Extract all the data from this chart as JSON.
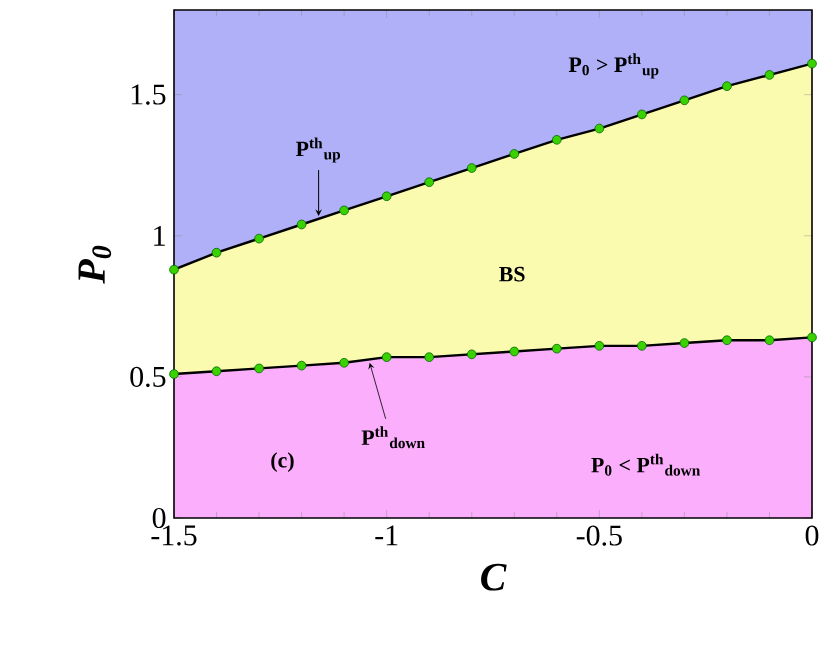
{
  "chart_data": {
    "type": "area",
    "xlabel": "C",
    "ylabel": "P$_{0}$",
    "x": [
      -1.5,
      -1.4,
      -1.3,
      -1.2,
      -1.1,
      -1.0,
      -0.9,
      -0.8,
      -0.7,
      -0.6,
      -0.5,
      -0.4,
      -0.3,
      -0.2,
      -0.1,
      0
    ],
    "series": [
      {
        "color": "#fbfbb0",
        "values": [
          0.88,
          0.94,
          0.99,
          1.04,
          1.09,
          1.14,
          1.19,
          1.24,
          1.29,
          1.34,
          1.38,
          1.43,
          1.48,
          1.53,
          1.57,
          1.61
        ]
      },
      {
        "color": "#fbaefb",
        "values": [
          0.51,
          0.52,
          0.53,
          0.54,
          0.55,
          0.57,
          0.57,
          0.58,
          0.59,
          0.6,
          0.61,
          0.61,
          0.62,
          0.63,
          0.63,
          0.64
        ]
      }
    ],
    "bands": [
      {
        "axis": "y",
        "from": 0.88,
        "to": 1.8,
        "color": "#b0b0f8"
      }
    ],
    "marker": "circle",
    "line_style": "solid",
    "grid": false,
    "xlim": [
      -1.5,
      0
    ],
    "ylim": [
      0,
      1.8
    ],
    "xticks": [
      {
        "value": -1.5,
        "label": "-1.5"
      },
      {
        "value": -1,
        "label": "-1"
      },
      {
        "value": -0.5,
        "label": "-0.5"
      },
      0
    ],
    "yticks": [
      0,
      0.5,
      1,
      1.5
    ],
    "annotations": [
      {
        "text": "P$^{th}$$_{up}$",
        "x": -1.16,
        "y": 1.07
      },
      {
        "text": "P$^{th}$$_{down}$",
        "x": -1.04,
        "y": 0.55
      },
      "P$_{0}$ > P$^{th}$$_{up}$",
      "BS",
      "P$_{0}$ < P$^{th}$$_{down}$",
      "(c)"
    ]
  }
}
